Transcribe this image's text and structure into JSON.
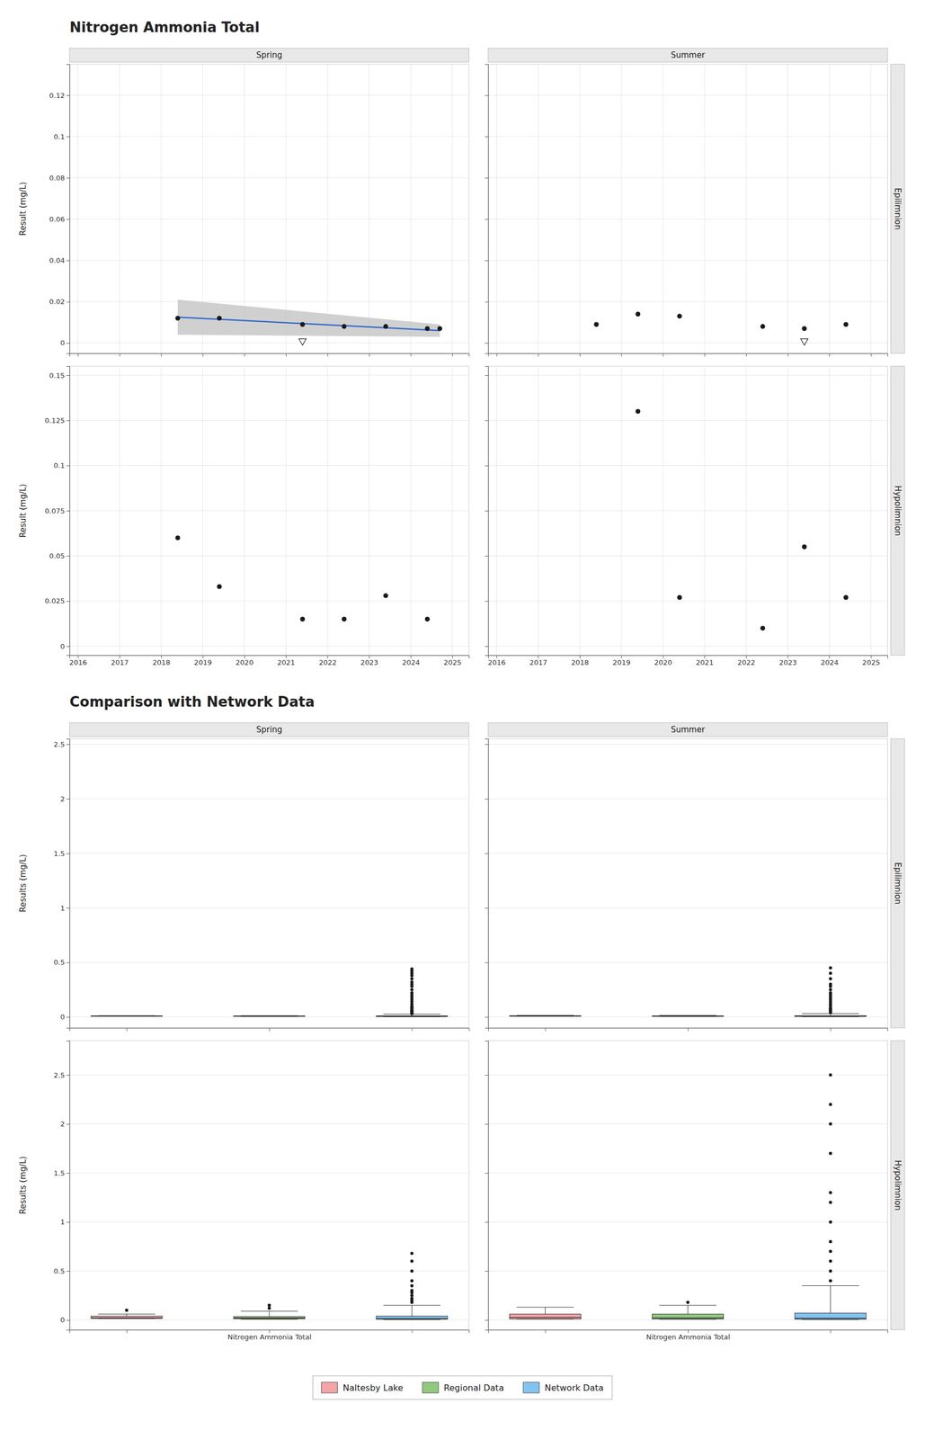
{
  "chart_data": [
    {
      "type": "scatter",
      "title": "Nitrogen Ammonia Total",
      "ylabel": "Result (mg/L)",
      "annotations": [
        {
          "text": "Spring",
          "side": "top"
        }
      ],
      "xlim": [
        2015.8,
        2025.4
      ],
      "xticks": [
        2016,
        2017,
        2018,
        2019,
        2020,
        2021,
        2022,
        2023,
        2024,
        2025
      ],
      "ylim": [
        -0.005,
        0.135
      ],
      "yticks": [
        0,
        0.02,
        0.04,
        0.06,
        0.08,
        0.1,
        0.12
      ],
      "grid": true,
      "tick_labels": "y",
      "series": [
        {
          "type": "area",
          "color": "#C0C0C0",
          "x": [
            2018.4,
            2024.7
          ],
          "ci_lo": [
            0.004,
            0.003
          ],
          "ci_hi": [
            0.021,
            0.009
          ]
        },
        {
          "type": "line",
          "color": "#3366CC",
          "x": [
            2018.4,
            2024.7
          ],
          "values": [
            0.0125,
            0.006
          ]
        },
        {
          "type": "scatter",
          "marker": "circle",
          "color": "#1a1a1a",
          "x": [
            2018.4,
            2019.4,
            2021.4,
            2022.4,
            2023.4,
            2024.4,
            2024.7
          ],
          "values": [
            0.012,
            0.012,
            0.009,
            0.008,
            0.008,
            0.007,
            0.007
          ]
        },
        {
          "type": "scatter",
          "marker": "triangle-down",
          "color": "#1a1a1a",
          "x": [
            2021.4
          ],
          "values": [
            0.001
          ]
        }
      ]
    },
    {
      "type": "scatter",
      "annotations": [
        {
          "text": "Summer",
          "side": "top"
        },
        {
          "text": "Epilimnion",
          "side": "right"
        }
      ],
      "xlim": [
        2015.8,
        2025.4
      ],
      "xticks": [
        2016,
        2017,
        2018,
        2019,
        2020,
        2021,
        2022,
        2023,
        2024,
        2025
      ],
      "ylim": [
        -0.005,
        0.135
      ],
      "yticks": [
        0,
        0.02,
        0.04,
        0.06,
        0.08,
        0.1,
        0.12
      ],
      "grid": true,
      "tick_labels": false,
      "series": [
        {
          "type": "scatter",
          "marker": "circle",
          "color": "#1a1a1a",
          "x": [
            2018.4,
            2019.4,
            2020.4,
            2022.4,
            2023.4,
            2024.4
          ],
          "values": [
            0.009,
            0.014,
            0.013,
            0.008,
            0.007,
            0.009
          ]
        },
        {
          "type": "scatter",
          "marker": "triangle-down",
          "color": "#1a1a1a",
          "x": [
            2023.4
          ],
          "values": [
            0.001
          ]
        }
      ]
    },
    {
      "type": "scatter",
      "ylabel": "Result (mg/L)",
      "xlim": [
        2015.8,
        2025.4
      ],
      "xticks": [
        2016,
        2017,
        2018,
        2019,
        2020,
        2021,
        2022,
        2023,
        2024,
        2025
      ],
      "ylim": [
        -0.005,
        0.155
      ],
      "yticks": [
        0,
        0.025,
        0.05,
        0.075,
        0.1,
        0.125,
        0.15
      ],
      "grid": true,
      "series": [
        {
          "type": "scatter",
          "marker": "circle",
          "color": "#1a1a1a",
          "x": [
            2018.4,
            2019.4,
            2021.4,
            2022.4,
            2023.4,
            2024.4
          ],
          "values": [
            0.06,
            0.033,
            0.015,
            0.015,
            0.028,
            0.015
          ]
        }
      ]
    },
    {
      "type": "scatter",
      "annotations": [
        {
          "text": "Hypolimnion",
          "side": "right"
        }
      ],
      "xlim": [
        2015.8,
        2025.4
      ],
      "xticks": [
        2016,
        2017,
        2018,
        2019,
        2020,
        2021,
        2022,
        2023,
        2024,
        2025
      ],
      "ylim": [
        -0.005,
        0.155
      ],
      "yticks": [
        0,
        0.025,
        0.05,
        0.075,
        0.1,
        0.125,
        0.15
      ],
      "grid": true,
      "tick_labels": "x",
      "series": [
        {
          "type": "scatter",
          "marker": "circle",
          "color": "#1a1a1a",
          "x": [
            2019.4,
            2020.4,
            2022.4,
            2023.4,
            2024.4
          ],
          "values": [
            0.13,
            0.027,
            0.01,
            0.055,
            0.027
          ]
        }
      ]
    },
    {
      "type": "box",
      "title": "Comparison with Network Data",
      "ylabel": "Results (mg/L)",
      "annotations": [
        {
          "text": "Spring",
          "side": "top"
        }
      ],
      "categories": [
        null,
        null,
        null
      ],
      "ylim": [
        -0.1,
        2.55
      ],
      "yticks": [
        0,
        0.5,
        1,
        1.5,
        2,
        2.5
      ],
      "grid": "y",
      "tick_labels": "y",
      "series": [
        {
          "color": "#F4A5A5",
          "median": 0.008,
          "q1": 0.007,
          "q3": 0.01,
          "whislo": 0.007,
          "whishi": 0.012,
          "fliers": []
        },
        {
          "color": "#90C97E",
          "median": 0.007,
          "q1": 0.005,
          "q3": 0.009,
          "whislo": 0.004,
          "whishi": 0.012,
          "fliers": []
        },
        {
          "color": "#82C4F0",
          "median": 0.006,
          "q1": 0.004,
          "q3": 0.01,
          "whislo": 0.002,
          "whishi": 0.025,
          "fliers": [
            0.03,
            0.035,
            0.04,
            0.05,
            0.055,
            0.06,
            0.07,
            0.08,
            0.09,
            0.1,
            0.12,
            0.14,
            0.16,
            0.18,
            0.2,
            0.22,
            0.25,
            0.28,
            0.3,
            0.32,
            0.35,
            0.38,
            0.4,
            0.42,
            0.44
          ]
        }
      ]
    },
    {
      "type": "box",
      "annotations": [
        {
          "text": "Summer",
          "side": "top"
        },
        {
          "text": "Epilimnion",
          "side": "right"
        }
      ],
      "categories": [
        null,
        null,
        null
      ],
      "ylim": [
        -0.1,
        2.55
      ],
      "yticks": [
        0,
        0.5,
        1,
        1.5,
        2,
        2.5
      ],
      "grid": "y",
      "tick_labels": false,
      "series": [
        {
          "color": "#F4A5A5",
          "median": 0.009,
          "q1": 0.007,
          "q3": 0.012,
          "whislo": 0.007,
          "whishi": 0.014,
          "fliers": []
        },
        {
          "color": "#90C97E",
          "median": 0.007,
          "q1": 0.005,
          "q3": 0.01,
          "whislo": 0.004,
          "whishi": 0.014,
          "fliers": []
        },
        {
          "color": "#82C4F0",
          "median": 0.007,
          "q1": 0.004,
          "q3": 0.012,
          "whislo": 0.002,
          "whishi": 0.03,
          "fliers": [
            0.04,
            0.05,
            0.06,
            0.07,
            0.08,
            0.1,
            0.12,
            0.14,
            0.16,
            0.18,
            0.2,
            0.22,
            0.25,
            0.28,
            0.3,
            0.35,
            0.4,
            0.45
          ]
        }
      ]
    },
    {
      "type": "box",
      "ylabel": "Results (mg/L)",
      "categories": [
        null,
        "Nitrogen Ammonia Total",
        null
      ],
      "ylim": [
        -0.1,
        2.85
      ],
      "yticks": [
        0,
        0.5,
        1,
        1.5,
        2,
        2.5
      ],
      "grid": "y",
      "series": [
        {
          "color": "#F4A5A5",
          "median": 0.022,
          "q1": 0.015,
          "q3": 0.04,
          "whislo": 0.015,
          "whishi": 0.06,
          "fliers": [
            0.1
          ]
        },
        {
          "color": "#90C97E",
          "median": 0.02,
          "q1": 0.012,
          "q3": 0.035,
          "whislo": 0.008,
          "whishi": 0.09,
          "fliers": [
            0.12,
            0.15
          ]
        },
        {
          "color": "#82C4F0",
          "median": 0.015,
          "q1": 0.008,
          "q3": 0.04,
          "whislo": 0.003,
          "whishi": 0.15,
          "fliers": [
            0.18,
            0.2,
            0.22,
            0.25,
            0.28,
            0.3,
            0.35,
            0.4,
            0.5,
            0.6,
            0.68
          ]
        }
      ]
    },
    {
      "type": "box",
      "annotations": [
        {
          "text": "Hypolimnion",
          "side": "right"
        }
      ],
      "categories": [
        null,
        "Nitrogen Ammonia Total",
        null
      ],
      "ylim": [
        -0.1,
        2.85
      ],
      "yticks": [
        0,
        0.5,
        1,
        1.5,
        2,
        2.5
      ],
      "grid": "y",
      "tick_labels": "x",
      "legend": "bottom",
      "series": [
        {
          "name": "Naltesby Lake",
          "color": "#F4A5A5",
          "median": 0.025,
          "q1": 0.01,
          "q3": 0.06,
          "whislo": 0.01,
          "whishi": 0.13,
          "fliers": []
        },
        {
          "name": "Regional Data",
          "color": "#90C97E",
          "median": 0.02,
          "q1": 0.01,
          "q3": 0.06,
          "whislo": 0.008,
          "whishi": 0.15,
          "fliers": [
            0.18
          ]
        },
        {
          "name": "Network Data",
          "color": "#82C4F0",
          "median": 0.018,
          "q1": 0.008,
          "q3": 0.07,
          "whislo": 0.004,
          "whishi": 0.35,
          "fliers": [
            0.4,
            0.5,
            0.6,
            0.7,
            0.8,
            1.0,
            1.2,
            1.3,
            1.7,
            2.0,
            2.2,
            2.5
          ]
        }
      ]
    }
  ]
}
